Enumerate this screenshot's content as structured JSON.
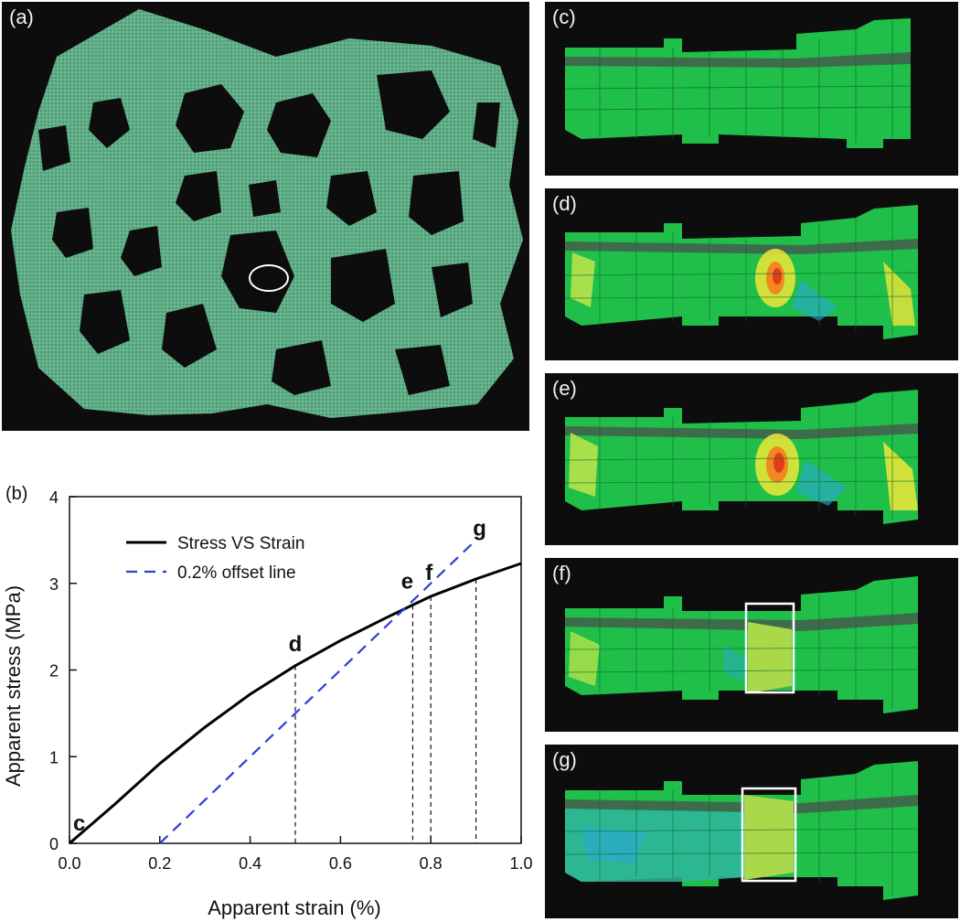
{
  "panels": {
    "a": "(a)",
    "c": "(c)",
    "d": "(d)",
    "e": "(e)",
    "f": "(f)",
    "g": "(g)"
  },
  "colors": {
    "bone_green": "#5fae86",
    "fe_green": "#1fbf4a",
    "background": "#0d0d0d",
    "hot": "#e23b1b",
    "warm": "#f0e63a",
    "cool": "#2aa8d8",
    "curve": "#000000",
    "offset": "#2b3fd6"
  },
  "chart_data": {
    "type": "line",
    "panel_label": "(b)",
    "xlabel": "Apparent strain (%)",
    "ylabel": "Apparent stress (MPa)",
    "xlim": [
      0.0,
      1.0
    ],
    "ylim": [
      0,
      4
    ],
    "xticks": [
      "0.0",
      "0.2",
      "0.4",
      "0.6",
      "0.8",
      "1.0"
    ],
    "yticks": [
      "0",
      "1",
      "2",
      "3",
      "4"
    ],
    "legend_position": "top-left",
    "series": [
      {
        "name": "Stress VS Strain",
        "style": "solid",
        "color": "#000000",
        "x": [
          0.0,
          0.1,
          0.2,
          0.3,
          0.4,
          0.5,
          0.6,
          0.7,
          0.76,
          0.8,
          0.9,
          1.0
        ],
        "y": [
          0.0,
          0.45,
          0.92,
          1.34,
          1.72,
          2.05,
          2.34,
          2.6,
          2.75,
          2.85,
          3.05,
          3.23
        ]
      },
      {
        "name": "0.2% offset line",
        "style": "dashed",
        "color": "#2b3fd6",
        "x": [
          0.2,
          0.9
        ],
        "y": [
          0.0,
          3.5
        ]
      }
    ],
    "markers": [
      {
        "label": "c",
        "x": 0.0,
        "y": 0.0
      },
      {
        "label": "d",
        "x": 0.5,
        "y": 2.05
      },
      {
        "label": "e",
        "x": 0.76,
        "y": 2.75
      },
      {
        "label": "f",
        "x": 0.8,
        "y": 2.85
      },
      {
        "label": "g",
        "x": 0.9,
        "y": 3.05
      }
    ]
  }
}
